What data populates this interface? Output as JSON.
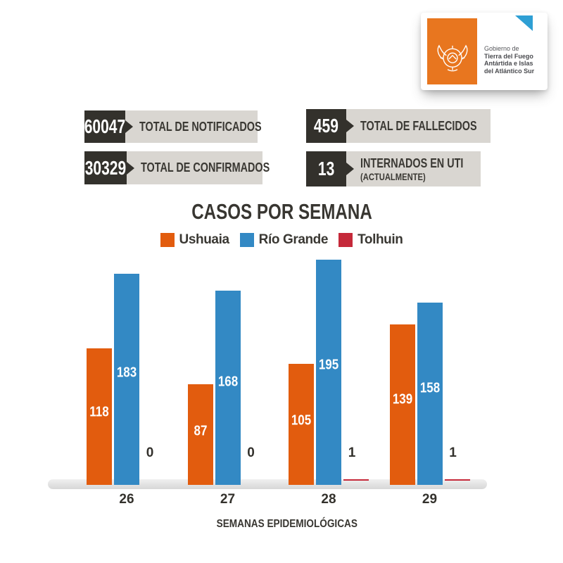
{
  "logo": {
    "line1": "Gobierno de",
    "line2": "Tierra del Fuego",
    "line3": "Antártida e Islas",
    "line4": "del Atlántico Sur",
    "orange": "#E8761F",
    "corner_triangle_color": "#2E9FD4"
  },
  "stats": [
    {
      "value": "60047",
      "label": "TOTAL DE NOTIFICADOS"
    },
    {
      "value": "30329",
      "label": "TOTAL DE CONFIRMADOS"
    },
    {
      "value": "459",
      "label": "TOTAL DE FALLECIDOS"
    },
    {
      "value": "13",
      "label": "INTERNADOS EN UTI",
      "sublabel": "(ACTUALMENTE)"
    }
  ],
  "chart_data": {
    "type": "bar",
    "title": "CASOS POR SEMANA",
    "xlabel": "SEMANAS EPIDEMIOLÓGICAS",
    "categories": [
      "26",
      "27",
      "28",
      "29"
    ],
    "series": [
      {
        "name": "Ushuaia",
        "color": "#E25C0E",
        "values": [
          118,
          87,
          105,
          139
        ]
      },
      {
        "name": "Río Grande",
        "color": "#3389C4",
        "values": [
          183,
          168,
          195,
          158
        ]
      },
      {
        "name": "Tolhuin",
        "color": "#C5293A",
        "values": [
          0,
          0,
          1,
          1
        ]
      }
    ],
    "ylim": [
      0,
      195
    ],
    "grid": false,
    "legend_position": "top",
    "value_labels": "on-bar"
  },
  "colors": {
    "stat_dark": "#33312C",
    "stat_light": "#D9D6D1",
    "text_dark": "#3A3833",
    "baseline_gray": "#DCDCDC",
    "background": "#FFFFFF"
  }
}
